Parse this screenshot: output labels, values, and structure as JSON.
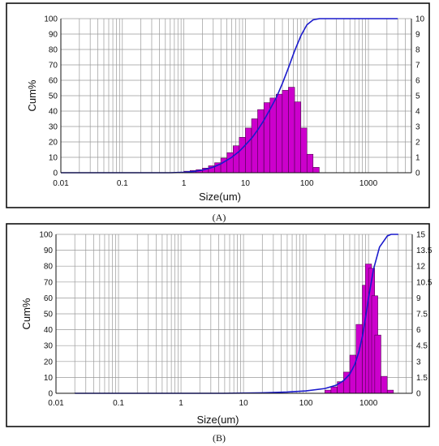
{
  "chart_data": [
    {
      "type": "bar",
      "id": "A",
      "caption": "(A)",
      "xlabel": "Size(um)",
      "ylabel": "Cum%",
      "x_scale": "log",
      "xlim": [
        0.01,
        5000
      ],
      "ylim": [
        0,
        100
      ],
      "y2lim": [
        0,
        10
      ],
      "x_ticks": [
        "0.01",
        "0.1",
        "1",
        "10",
        "100",
        "1000"
      ],
      "y_ticks": [
        "0",
        "10",
        "20",
        "30",
        "40",
        "50",
        "60",
        "70",
        "80",
        "90",
        "100"
      ],
      "y2_ticks": [
        "0",
        "1",
        "2",
        "3",
        "4",
        "5",
        "6",
        "7",
        "8",
        "9",
        "10"
      ],
      "grid": true,
      "bars": {
        "name": "",
        "axis": "right",
        "color": "#cc00cc",
        "x": [
          1.0,
          1.26,
          1.58,
          2.0,
          2.51,
          3.16,
          3.98,
          5.01,
          6.31,
          7.94,
          10.0,
          12.6,
          15.8,
          20.0,
          25.1,
          31.6,
          39.8,
          50.1,
          63.1,
          79.4,
          100,
          126
        ],
        "values": [
          0.1,
          0.15,
          0.2,
          0.3,
          0.45,
          0.65,
          0.95,
          1.3,
          1.75,
          2.3,
          2.9,
          3.5,
          4.1,
          4.55,
          4.85,
          5.1,
          5.35,
          5.55,
          4.6,
          2.9,
          1.2,
          0.35
        ]
      },
      "curve": {
        "name": "",
        "axis": "left",
        "color": "#1a1acc",
        "x": [
          0.01,
          0.3,
          0.6,
          1.0,
          1.5,
          2.0,
          3.0,
          4.0,
          6.0,
          8.0,
          10,
          13,
          16,
          20,
          25,
          32,
          40,
          50,
          63,
          80,
          100,
          126,
          160,
          3000
        ],
        "values": [
          0,
          0,
          0,
          0.3,
          0.9,
          1.7,
          3.6,
          5.8,
          10,
          14,
          18,
          23,
          28,
          34,
          41,
          49,
          58,
          68,
          79,
          89,
          96,
          99.2,
          100,
          100
        ]
      }
    },
    {
      "type": "bar",
      "id": "B",
      "caption": "(B)",
      "xlabel": "Size(um)",
      "ylabel": "Cum%",
      "x_scale": "log",
      "xlim": [
        0.01,
        5000
      ],
      "ylim": [
        0,
        100
      ],
      "y2lim": [
        0,
        15
      ],
      "x_ticks": [
        "0.01",
        "0.1",
        "1",
        "10",
        "100",
        "1000"
      ],
      "y_ticks": [
        "0",
        "10",
        "20",
        "30",
        "40",
        "50",
        "60",
        "70",
        "80",
        "90",
        "100"
      ],
      "y2_ticks": [
        "0",
        "1.5",
        "3",
        "4.5",
        "6",
        "7.5",
        "9",
        "10.5",
        "12",
        "13.5",
        "15"
      ],
      "grid": true,
      "bars": {
        "name": "",
        "axis": "right",
        "color": "#cc00cc",
        "x": [
          200,
          251,
          316,
          398,
          501,
          631,
          794,
          891,
          1000,
          1122,
          1259,
          1585,
          1995
        ],
        "values": [
          0.3,
          0.6,
          1.1,
          2.0,
          3.6,
          6.5,
          10.2,
          12.2,
          11.8,
          9.2,
          5.5,
          1.6,
          0.3
        ]
      },
      "curve": {
        "name": "",
        "axis": "left",
        "color": "#1a1acc",
        "x": [
          0.02,
          5,
          20,
          50,
          100,
          200,
          300,
          400,
          500,
          600,
          700,
          800,
          900,
          1000,
          1200,
          1500,
          2000,
          2300,
          3000
        ],
        "values": [
          0,
          0,
          0.3,
          0.8,
          1.5,
          3,
          5,
          8,
          12,
          18,
          26,
          36,
          48,
          60,
          78,
          92,
          99,
          100,
          100
        ]
      }
    }
  ]
}
